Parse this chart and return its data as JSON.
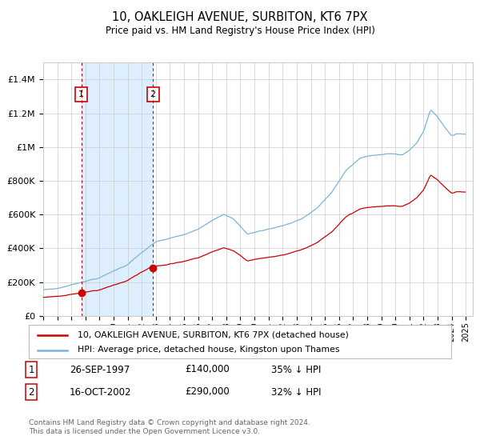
{
  "title": "10, OAKLEIGH AVENUE, SURBITON, KT6 7PX",
  "subtitle": "Price paid vs. HM Land Registry's House Price Index (HPI)",
  "legend_line1": "10, OAKLEIGH AVENUE, SURBITON, KT6 7PX (detached house)",
  "legend_line2": "HPI: Average price, detached house, Kingston upon Thames",
  "transaction1_date_str": "26-SEP-1997",
  "transaction1_price": 140000,
  "transaction1_pct": "35% ↓ HPI",
  "transaction2_date_str": "16-OCT-2002",
  "transaction2_price": 290000,
  "transaction2_pct": "32% ↓ HPI",
  "footer": "Contains HM Land Registry data © Crown copyright and database right 2024.\nThis data is licensed under the Open Government Licence v3.0.",
  "hpi_color": "#7ab5d8",
  "price_color": "#cc0000",
  "shade_color": "#ddeeff",
  "grid_color": "#cccccc",
  "bg_color": "#ffffff",
  "ylim": [
    0,
    1500000
  ],
  "xlim_start": 1995.0,
  "xlim_end": 2025.5,
  "t1_year": 1997,
  "t1_month": 9,
  "t2_year": 2002,
  "t2_month": 10,
  "hpi_anchors_x": [
    1995.0,
    1996.0,
    1997.0,
    1998.0,
    1999.0,
    2000.0,
    2001.0,
    2002.0,
    2003.0,
    2004.0,
    2005.0,
    2006.0,
    2007.0,
    2007.8,
    2008.5,
    2009.5,
    2010.5,
    2011.5,
    2012.5,
    2013.5,
    2014.5,
    2015.5,
    2016.5,
    2017.5,
    2018.5,
    2019.5,
    2020.5,
    2021.0,
    2021.5,
    2022.0,
    2022.5,
    2023.0,
    2023.5,
    2024.0,
    2024.5
  ],
  "hpi_anchors_y": [
    155000,
    163000,
    185000,
    210000,
    230000,
    270000,
    310000,
    380000,
    440000,
    460000,
    480000,
    510000,
    570000,
    610000,
    580000,
    490000,
    510000,
    530000,
    555000,
    590000,
    650000,
    740000,
    870000,
    940000,
    960000,
    970000,
    960000,
    990000,
    1030000,
    1100000,
    1230000,
    1190000,
    1130000,
    1080000,
    1090000
  ]
}
